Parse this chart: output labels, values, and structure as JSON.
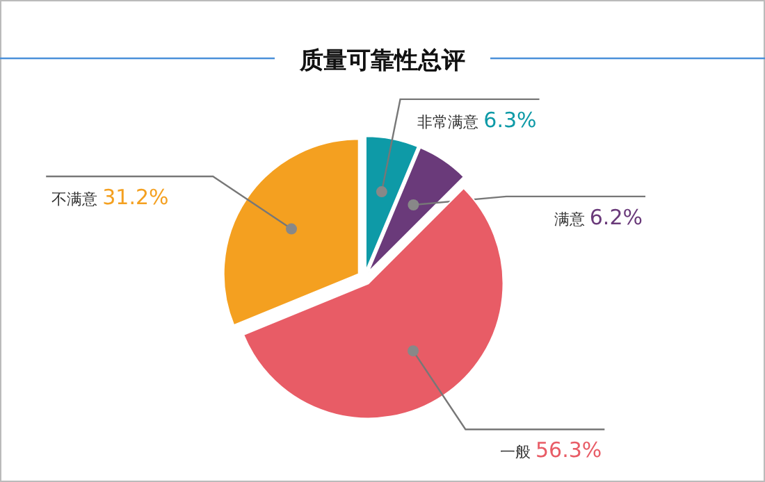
{
  "chart_data": {
    "type": "pie",
    "title": "质量可靠性总评",
    "categories": [
      "非常满意",
      "满意",
      "一般",
      "不满意"
    ],
    "values": [
      6.3,
      6.2,
      56.3,
      31.2
    ],
    "colors": [
      "#0e9aa7",
      "#6a3a7a",
      "#e85c66",
      "#f4a020"
    ],
    "value_labels": [
      "6.3%",
      "6.2%",
      "56.3%",
      "31.2%"
    ]
  }
}
